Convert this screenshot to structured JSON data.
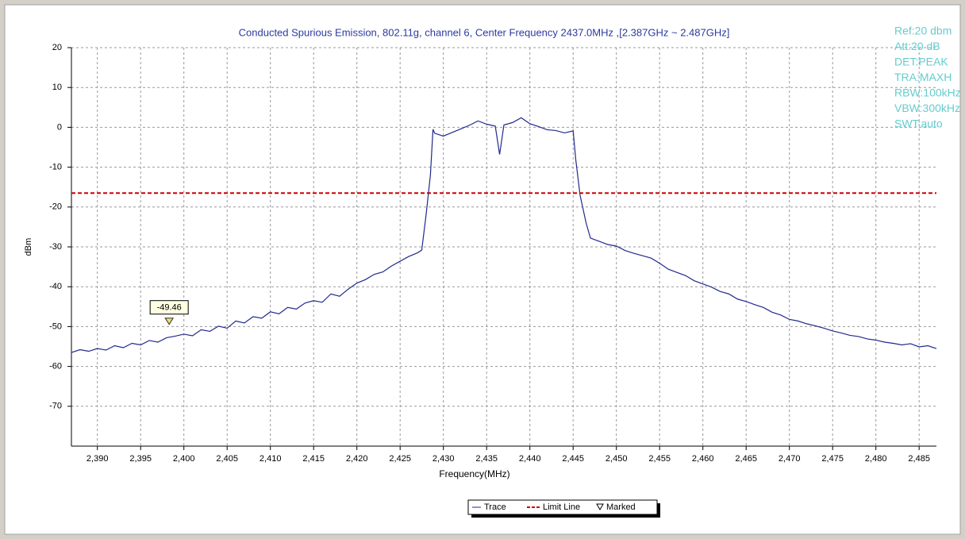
{
  "chart_data": {
    "type": "line",
    "title": "Conducted Spurious Emission, 802.11g, channel 6, Center Frequency 2437.0MHz ,[2.387GHz ~ 2.487GHz]",
    "xlabel": "Frequency(MHz)",
    "ylabel": "dBm",
    "annotations": [
      "Ref:20 dbm",
      "Att:20 dB",
      "DET:PEAK",
      "TRA:MAXH",
      "RBW:100kHz",
      "VBW:300kHz",
      "SWT:auto"
    ],
    "annotation_color": "#66cccc",
    "xlim": [
      2387,
      2487
    ],
    "ylim": [
      -80,
      20
    ],
    "xticks": [
      {
        "value": 2390,
        "label": "2,390"
      },
      {
        "value": 2395,
        "label": "2,395"
      },
      {
        "value": 2400,
        "label": "2,400"
      },
      {
        "value": 2405,
        "label": "2,405"
      },
      {
        "value": 2410,
        "label": "2,410"
      },
      {
        "value": 2415,
        "label": "2,415"
      },
      {
        "value": 2420,
        "label": "2,420"
      },
      {
        "value": 2425,
        "label": "2,425"
      },
      {
        "value": 2430,
        "label": "2,430"
      },
      {
        "value": 2435,
        "label": "2,435"
      },
      {
        "value": 2440,
        "label": "2,440"
      },
      {
        "value": 2445,
        "label": "2,445"
      },
      {
        "value": 2450,
        "label": "2,450"
      },
      {
        "value": 2455,
        "label": "2,455"
      },
      {
        "value": 2460,
        "label": "2,460"
      },
      {
        "value": 2465,
        "label": "2,465"
      },
      {
        "value": 2470,
        "label": "2,470"
      },
      {
        "value": 2475,
        "label": "2,475"
      },
      {
        "value": 2480,
        "label": "2,480"
      },
      {
        "value": 2485,
        "label": "2,485"
      }
    ],
    "yticks": [
      20,
      10,
      0,
      -10,
      -20,
      -30,
      -40,
      -50,
      -60,
      -70
    ],
    "grid": true,
    "x": [
      2387,
      2388,
      2389,
      2390,
      2391,
      2392,
      2393,
      2394,
      2395,
      2396,
      2397,
      2398,
      2399,
      2400,
      2401,
      2402,
      2403,
      2404,
      2405,
      2406,
      2407,
      2408,
      2409,
      2410,
      2411,
      2412,
      2413,
      2414,
      2415,
      2416,
      2417,
      2418,
      2419,
      2420,
      2421,
      2422,
      2423,
      2424,
      2425,
      2426,
      2427,
      2427.5,
      2428,
      2428.5,
      2428.8,
      2429,
      2430,
      2431,
      2432,
      2433,
      2434,
      2435,
      2436,
      2436.5,
      2437,
      2438,
      2439,
      2440,
      2441,
      2442,
      2443,
      2444,
      2445,
      2445.3,
      2445.8,
      2446.5,
      2447,
      2448,
      2449,
      2450,
      2451,
      2452,
      2453,
      2454,
      2455,
      2456,
      2457,
      2458,
      2459,
      2460,
      2461,
      2462,
      2463,
      2464,
      2465,
      2466,
      2467,
      2468,
      2469,
      2470,
      2471,
      2472,
      2473,
      2474,
      2475,
      2476,
      2477,
      2478,
      2479,
      2480,
      2481,
      2482,
      2483,
      2484,
      2485,
      2486,
      2487
    ],
    "series": [
      {
        "name": "Trace",
        "color": "#1f2a8c",
        "values": [
          -56.5,
          -55.8,
          -56.2,
          -55.5,
          -55.9,
          -54.8,
          -55.3,
          -54.2,
          -54.6,
          -53.5,
          -53.9,
          -52.8,
          -52.4,
          -51.9,
          -52.3,
          -50.8,
          -51.2,
          -49.9,
          -50.4,
          -48.6,
          -49.1,
          -47.5,
          -47.9,
          -46.3,
          -46.8,
          -45.2,
          -45.6,
          -44.1,
          -43.5,
          -43.9,
          -41.8,
          -42.4,
          -40.6,
          -39.1,
          -38.2,
          -36.9,
          -36.3,
          -34.8,
          -33.6,
          -32.4,
          -31.5,
          -30.8,
          -22,
          -12,
          -0.5,
          -1.5,
          -2.2,
          -1.3,
          -0.4,
          0.5,
          1.6,
          0.8,
          0.3,
          -6.8,
          0.6,
          1.2,
          2.4,
          0.9,
          0.2,
          -0.6,
          -0.8,
          -1.4,
          -0.9,
          -8,
          -17,
          -24,
          -27.8,
          -28.6,
          -29.4,
          -29.8,
          -30.9,
          -31.6,
          -32.2,
          -32.8,
          -34.1,
          -35.6,
          -36.4,
          -37.2,
          -38.5,
          -39.3,
          -40.1,
          -41.2,
          -41.8,
          -43.1,
          -43.7,
          -44.5,
          -45.2,
          -46.4,
          -47.1,
          -48.2,
          -48.6,
          -49.3,
          -49.8,
          -50.4,
          -51.1,
          -51.6,
          -52.2,
          -52.5,
          -53.1,
          -53.4,
          -53.9,
          -54.2,
          -54.6,
          -54.3,
          -55.1,
          -54.8,
          -55.5
        ]
      }
    ],
    "limit_line": {
      "name": "Limit Line",
      "value": -16.5,
      "color": "#cc0000"
    },
    "marker": {
      "name": "Marked",
      "x": 2398.3,
      "value": -49.46,
      "color": "#e8e070"
    }
  }
}
